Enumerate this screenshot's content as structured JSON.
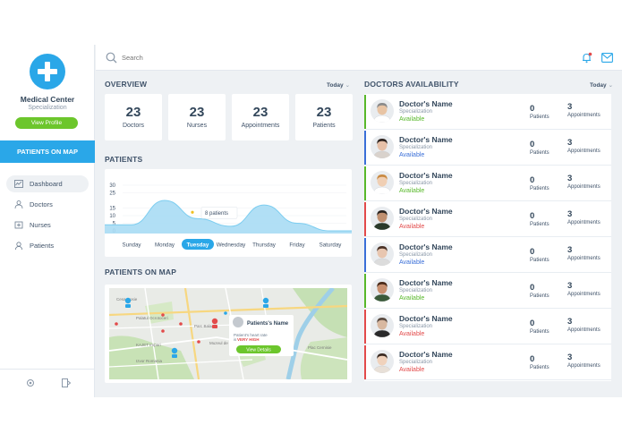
{
  "brand": {
    "name": "Medical Center",
    "subtitle": "Specialization",
    "view_profile": "View Profile"
  },
  "sidebar": {
    "patients_on_map": "PATIENTS ON MAP",
    "items": [
      {
        "label": "Dashboard",
        "icon": "dashboard-icon",
        "active": true
      },
      {
        "label": "Doctors",
        "icon": "doctor-icon",
        "active": false
      },
      {
        "label": "Nurses",
        "icon": "nurse-icon",
        "active": false
      },
      {
        "label": "Patients",
        "icon": "patient-icon",
        "active": false
      }
    ],
    "footer_icons": [
      "settings-icon",
      "logout-icon"
    ]
  },
  "header": {
    "search_placeholder": "Search",
    "icons": [
      "search-icon",
      "bell-icon",
      "mail-icon"
    ]
  },
  "overview": {
    "title": "OVERVIEW",
    "filter": "Today",
    "stats": [
      {
        "value": "23",
        "label": "Doctors"
      },
      {
        "value": "23",
        "label": "Nurses"
      },
      {
        "value": "23",
        "label": "Appointments"
      },
      {
        "value": "23",
        "label": "Patients"
      }
    ]
  },
  "patients_chart": {
    "title": "PATIENTS",
    "tooltip": "8 patients",
    "selected_day": "Tuesday"
  },
  "chart_data": {
    "type": "area",
    "categories": [
      "Sunday",
      "Monday",
      "Tuesday",
      "Wednesday",
      "Thursday",
      "Friday",
      "Saturday"
    ],
    "values": [
      4,
      20,
      8,
      3,
      17,
      5,
      0
    ],
    "yticks": [
      "30",
      "25",
      "15",
      "10",
      "5",
      "0"
    ],
    "ylim": [
      0,
      30
    ],
    "title": "",
    "xlabel": "",
    "ylabel": "",
    "grid": true,
    "colors": {
      "fill": "#a8dcf4",
      "line": "#7ccdf0",
      "selected": "#2aa7e8"
    }
  },
  "patients_map": {
    "title": "PATIENTS ON MAP",
    "popup": {
      "name": "Patients's Name",
      "rate_prefix": "Patient's heart rate",
      "rate_is": "is",
      "rate_value": "VERY HIGH",
      "button": "View Details"
    },
    "street_labels": [
      "Cesa Rosie",
      "Palatul Ocrotoceri",
      "Parc Balan",
      "KAJET Impari",
      "Muzeul de Geologie",
      "Izvor Romania",
      "Plac Cernisie"
    ]
  },
  "doctors": {
    "title": "DOCTORS AVAILABILITY",
    "filter": "Today",
    "patients_label": "Patients",
    "appointments_label": "Appointments",
    "rows": [
      {
        "name": "Doctor's Name",
        "specialization": "Specialization",
        "status": "Available",
        "status_color": "#58b82a",
        "bar_color": "#58b82a",
        "patients": "0",
        "appointments": "3",
        "skin": "#e8c4a4",
        "hair": "#8a8a8a",
        "coat": "#ffffff"
      },
      {
        "name": "Doctor's Name",
        "specialization": "Specialization",
        "status": "Available",
        "status_color": "#3a6fd8",
        "bar_color": "#3a6fd8",
        "patients": "0",
        "appointments": "3",
        "skin": "#e6c0a8",
        "hair": "#2e2420",
        "coat": "#d9d2cc"
      },
      {
        "name": "Doctor's Name",
        "specialization": "Specialization",
        "status": "Available",
        "status_color": "#58b82a",
        "bar_color": "#58b82a",
        "patients": "0",
        "appointments": "3",
        "skin": "#f0cfb4",
        "hair": "#c98a42",
        "coat": "#ffffff"
      },
      {
        "name": "Doctor's Name",
        "specialization": "Specialization",
        "status": "Available",
        "status_color": "#e24a4a",
        "bar_color": "#e24a4a",
        "patients": "0",
        "appointments": "3",
        "skin": "#c09070",
        "hair": "#2a2420",
        "coat": "#2a3a2a"
      },
      {
        "name": "Doctor's Name",
        "specialization": "Specialization",
        "status": "Available",
        "status_color": "#3a6fd8",
        "bar_color": "#3a6fd8",
        "patients": "0",
        "appointments": "3",
        "skin": "#e8c6b0",
        "hair": "#4a3226",
        "coat": "#dcdcdc"
      },
      {
        "name": "Doctor's Name",
        "specialization": "Specialization",
        "status": "Available",
        "status_color": "#58b82a",
        "bar_color": "#58b82a",
        "patients": "0",
        "appointments": "3",
        "skin": "#c89070",
        "hair": "#4a2a18",
        "coat": "#3a5a3a"
      },
      {
        "name": "Doctor's Name",
        "specialization": "Specialization",
        "status": "Available",
        "status_color": "#e24a4a",
        "bar_color": "#e24a4a",
        "patients": "0",
        "appointments": "3",
        "skin": "#d8b8a0",
        "hair": "#5a4a40",
        "coat": "#2a2a2a"
      },
      {
        "name": "Doctor's Name",
        "specialization": "Specialization",
        "status": "Available",
        "status_color": "#e24a4a",
        "bar_color": "#e24a4a",
        "patients": "0",
        "appointments": "3",
        "skin": "#f0d2bc",
        "hair": "#3a2a22",
        "coat": "#e8e0d8"
      }
    ]
  },
  "colors": {
    "accent": "#2aa7e8",
    "green": "#6cc62c",
    "red": "#e24a4a",
    "background": "#eef1f4"
  }
}
